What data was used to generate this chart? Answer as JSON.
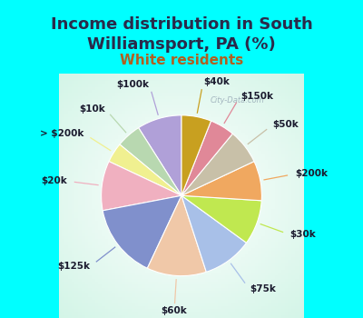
{
  "title": "Income distribution in South\nWilliamsport, PA (%)",
  "subtitle": "White residents",
  "background_color": "#00FFFF",
  "labels": [
    "$100k",
    "$10k",
    "> $200k",
    "$20k",
    "$125k",
    "$60k",
    "$75k",
    "$30k",
    "$200k",
    "$50k",
    "$150k",
    "$40k"
  ],
  "values": [
    9,
    5,
    4,
    10,
    15,
    12,
    10,
    9,
    8,
    7,
    5,
    6
  ],
  "colors": [
    "#b0a0d8",
    "#b8d8b0",
    "#f0f090",
    "#f0b0c0",
    "#8090cc",
    "#f0c8a8",
    "#a8c0e8",
    "#c0e850",
    "#f0a860",
    "#c8c0a8",
    "#e08898",
    "#c8a020"
  ],
  "title_fontsize": 13,
  "subtitle_fontsize": 11,
  "title_color": "#2a2a4a",
  "subtitle_color": "#b06020",
  "label_fontsize": 7.5
}
